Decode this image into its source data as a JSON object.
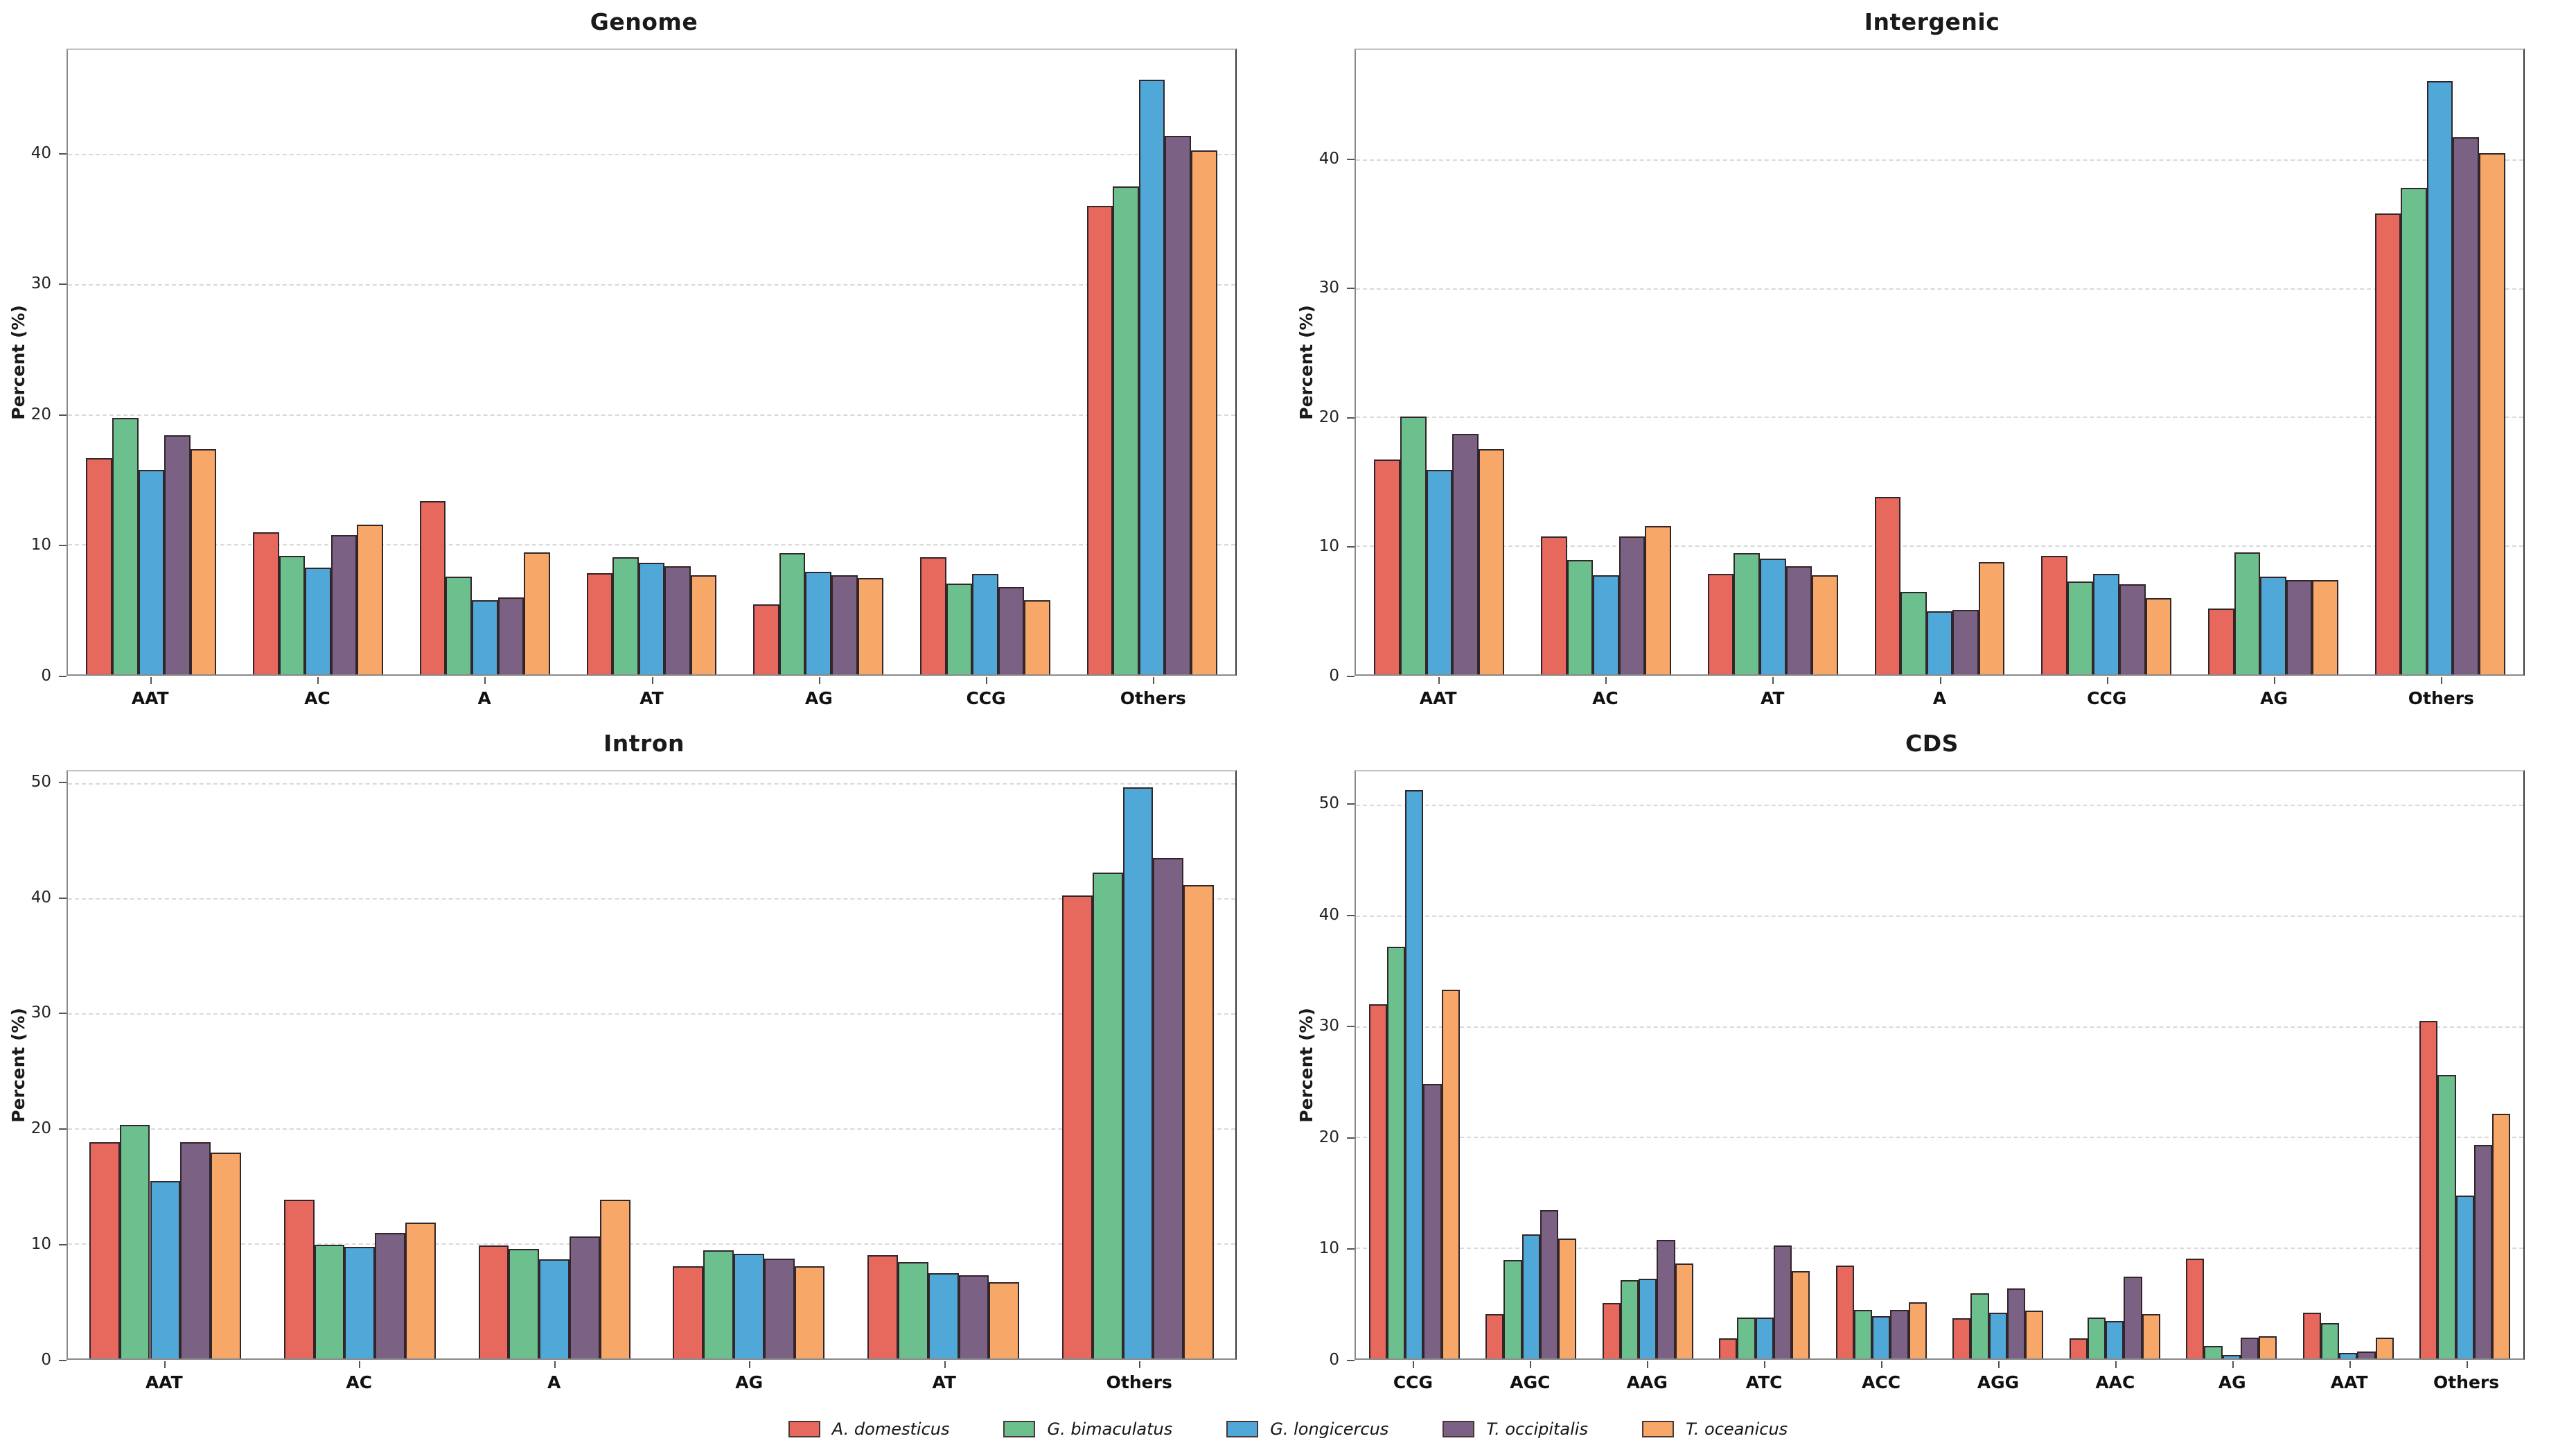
{
  "legend": {
    "items": [
      {
        "label": "A. domesticus",
        "color": "#E7685D"
      },
      {
        "label": "G. bimaculatus",
        "color": "#6CC08D"
      },
      {
        "label": "G. longicercus",
        "color": "#4FA8D8"
      },
      {
        "label": "T. occipitalis",
        "color": "#7B6285"
      },
      {
        "label": "T. oceanicus",
        "color": "#F7A767"
      }
    ]
  },
  "chart_data": [
    {
      "type": "bar",
      "title": "Genome",
      "ylabel": "Percent (%)",
      "xlabel": "",
      "grid": "horizontal-dashed",
      "legend_position": "bottom-center",
      "ylim": [
        0,
        48
      ],
      "yticks": [
        0,
        10,
        20,
        30,
        40
      ],
      "categories": [
        "AAT",
        "AC",
        "A",
        "AT",
        "AG",
        "CCG",
        "Others"
      ],
      "series": [
        {
          "name": "A. domesticus",
          "values": [
            16.6,
            10.9,
            13.3,
            7.8,
            5.4,
            9.0,
            36.0
          ]
        },
        {
          "name": "G. bimaculatus",
          "values": [
            19.7,
            9.1,
            7.5,
            9.0,
            9.3,
            7.0,
            37.5
          ]
        },
        {
          "name": "G. longicercus",
          "values": [
            15.7,
            8.2,
            5.7,
            8.6,
            7.9,
            7.7,
            45.7
          ]
        },
        {
          "name": "T. occipitalis",
          "values": [
            18.4,
            10.7,
            5.9,
            8.3,
            7.6,
            6.7,
            41.4
          ]
        },
        {
          "name": "T. oceanicus",
          "values": [
            17.3,
            11.5,
            9.4,
            7.6,
            7.4,
            5.7,
            40.3
          ]
        }
      ]
    },
    {
      "type": "bar",
      "title": "Intergenic",
      "ylabel": "Percent (%)",
      "xlabel": "",
      "grid": "horizontal-dashed",
      "legend_position": "bottom-center",
      "ylim": [
        0,
        48.5
      ],
      "yticks": [
        0,
        10,
        20,
        30,
        40
      ],
      "categories": [
        "AAT",
        "AC",
        "AT",
        "A",
        "CCG",
        "AG",
        "Others"
      ],
      "series": [
        {
          "name": "A. domesticus",
          "values": [
            16.7,
            10.7,
            7.8,
            13.8,
            9.2,
            5.1,
            35.8
          ]
        },
        {
          "name": "G. bimaculatus",
          "values": [
            20.0,
            8.9,
            9.4,
            6.4,
            7.2,
            9.5,
            37.8
          ]
        },
        {
          "name": "G. longicercus",
          "values": [
            15.9,
            7.7,
            9.0,
            4.9,
            7.8,
            7.6,
            46.1
          ]
        },
        {
          "name": "T. occipitalis",
          "values": [
            18.7,
            10.7,
            8.4,
            5.0,
            7.0,
            7.3,
            41.7
          ]
        },
        {
          "name": "T. oceanicus",
          "values": [
            17.5,
            11.5,
            7.7,
            8.7,
            5.9,
            7.3,
            40.5
          ]
        }
      ]
    },
    {
      "type": "bar",
      "title": "Intron",
      "ylabel": "Percent (%)",
      "xlabel": "",
      "grid": "horizontal-dashed",
      "legend_position": "bottom-center",
      "ylim": [
        0,
        51
      ],
      "yticks": [
        0,
        10,
        20,
        30,
        40,
        50
      ],
      "categories": [
        "AAT",
        "AC",
        "A",
        "AG",
        "AT",
        "Others"
      ],
      "series": [
        {
          "name": "A. domesticus",
          "values": [
            18.8,
            13.8,
            9.8,
            8.0,
            9.0,
            40.2
          ]
        },
        {
          "name": "G. bimaculatus",
          "values": [
            20.3,
            9.9,
            9.5,
            9.4,
            8.4,
            42.2
          ]
        },
        {
          "name": "G. longicercus",
          "values": [
            15.4,
            9.7,
            8.6,
            9.1,
            7.4,
            49.6
          ]
        },
        {
          "name": "T. occipitalis",
          "values": [
            18.8,
            10.9,
            10.6,
            8.7,
            7.2,
            43.5
          ]
        },
        {
          "name": "T. oceanicus",
          "values": [
            17.9,
            11.8,
            13.8,
            8.0,
            6.6,
            41.1
          ]
        }
      ]
    },
    {
      "type": "bar",
      "title": "CDS",
      "ylabel": "Percent (%)",
      "xlabel": "",
      "grid": "horizontal-dashed",
      "legend_position": "bottom-center",
      "ylim": [
        0,
        53
      ],
      "yticks": [
        0,
        10,
        20,
        30,
        40,
        50
      ],
      "categories": [
        "CCG",
        "AGC",
        "AAG",
        "ATC",
        "ACC",
        "AGG",
        "AAC",
        "AG",
        "AAT",
        "Others"
      ],
      "series": [
        {
          "name": "A. domesticus",
          "values": [
            32.0,
            4.0,
            5.0,
            1.8,
            8.4,
            3.6,
            1.8,
            9.0,
            4.1,
            30.5
          ]
        },
        {
          "name": "G. bimaculatus",
          "values": [
            37.2,
            8.9,
            7.1,
            3.7,
            4.4,
            5.9,
            3.7,
            1.1,
            3.2,
            25.6
          ]
        },
        {
          "name": "G. longicercus",
          "values": [
            51.3,
            11.2,
            7.2,
            3.7,
            3.8,
            4.1,
            3.4,
            0.3,
            0.5,
            14.7
          ]
        },
        {
          "name": "T. occipitalis",
          "values": [
            24.8,
            13.4,
            10.7,
            10.2,
            4.4,
            6.3,
            7.4,
            1.9,
            0.6,
            19.3
          ]
        },
        {
          "name": "T. oceanicus",
          "values": [
            33.3,
            10.8,
            8.6,
            7.9,
            5.1,
            4.3,
            4.0,
            2.0,
            1.9,
            22.1
          ]
        }
      ]
    }
  ]
}
